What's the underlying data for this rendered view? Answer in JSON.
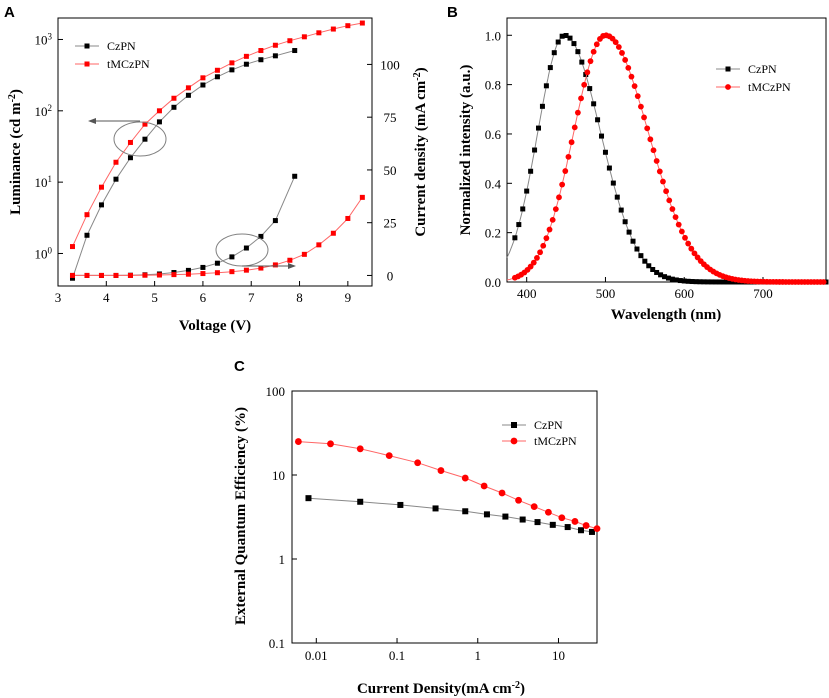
{
  "colors": {
    "black": "#000000",
    "red": "#ff0000",
    "circle": "#808080"
  },
  "panels": {
    "a": "A",
    "b": "B",
    "c": "C"
  },
  "chart_data": [
    {
      "panel": "A",
      "type": "line",
      "xlabel": "Voltage (V)",
      "ylabel_left": "Luminance (cd m",
      "ylabel_left_sup": "-2",
      "ylabel_left_close": ")",
      "ylabel_right": "Current density (mA cm",
      "ylabel_right_sup": "-2",
      "ylabel_right_close": ")",
      "xlim": [
        3,
        9.5
      ],
      "xticks": [
        "3",
        "4",
        "5",
        "6",
        "7",
        "8",
        "9"
      ],
      "ylim_left_log": [
        0.35,
        2000
      ],
      "yticks_left": [
        {
          "base": "10",
          "exp": "0",
          "value": 1
        },
        {
          "base": "10",
          "exp": "1",
          "value": 10
        },
        {
          "base": "10",
          "exp": "2",
          "value": 100
        },
        {
          "base": "10",
          "exp": "3",
          "value": 1000
        }
      ],
      "ylim_right": [
        -5,
        122
      ],
      "yticks_right": [
        "0",
        "25",
        "50",
        "75",
        "100"
      ],
      "legend": [
        "CzPN",
        "tMCzPN"
      ],
      "series": [
        {
          "name": "CzPN",
          "axis": "left",
          "color": "#000000",
          "marker": "square",
          "x": [
            3.3,
            3.6,
            3.9,
            4.2,
            4.5,
            4.8,
            5.1,
            5.4,
            5.7,
            6.0,
            6.3,
            6.6,
            6.9,
            7.2,
            7.5,
            7.9
          ],
          "y": [
            0.45,
            1.8,
            4.8,
            11,
            22,
            40,
            70,
            112,
            165,
            230,
            300,
            375,
            450,
            520,
            590,
            700
          ]
        },
        {
          "name": "tMCzPN",
          "axis": "left",
          "color": "#ff0000",
          "marker": "square",
          "x": [
            3.3,
            3.6,
            3.9,
            4.2,
            4.5,
            4.8,
            5.1,
            5.4,
            5.7,
            6.0,
            6.3,
            6.6,
            6.9,
            7.2,
            7.5,
            7.8,
            8.1,
            8.4,
            8.7,
            9.0,
            9.3
          ],
          "y": [
            1.25,
            3.5,
            8.5,
            19,
            36,
            65,
            100,
            150,
            210,
            290,
            370,
            470,
            580,
            700,
            830,
            960,
            1090,
            1240,
            1400,
            1560,
            1700
          ]
        },
        {
          "name": "CzPN",
          "axis": "right",
          "color": "#000000",
          "marker": "square",
          "x": [
            3.3,
            3.6,
            3.9,
            4.2,
            4.5,
            4.8,
            5.1,
            5.4,
            5.7,
            6.0,
            6.3,
            6.6,
            6.9,
            7.2,
            7.5,
            7.9
          ],
          "y": [
            0,
            0,
            0,
            0,
            0.1,
            0.3,
            0.7,
            1.4,
            2.4,
            3.8,
            5.8,
            8.8,
            13,
            18.5,
            26,
            47
          ]
        },
        {
          "name": "tMCzPN",
          "axis": "right",
          "color": "#ff0000",
          "marker": "square",
          "x": [
            3.3,
            3.6,
            3.9,
            4.2,
            4.5,
            4.8,
            5.1,
            5.4,
            5.7,
            6.0,
            6.3,
            6.6,
            6.9,
            7.2,
            7.5,
            7.8,
            8.1,
            8.4,
            8.7,
            9.0,
            9.3
          ],
          "y": [
            0,
            0,
            0,
            0,
            0,
            0.1,
            0.2,
            0.4,
            0.6,
            0.9,
            1.3,
            1.8,
            2.5,
            3.5,
            5,
            7.2,
            10,
            14.5,
            20,
            27,
            37
          ]
        }
      ]
    },
    {
      "panel": "B",
      "type": "line",
      "xlabel": "Wavelength (nm)",
      "ylabel": "Normalized  intensity (a.u.)",
      "xlim": [
        375,
        780
      ],
      "xticks": [
        "400",
        "500",
        "600",
        "700"
      ],
      "ylim": [
        0,
        1.07
      ],
      "yticks": [
        "0.0",
        "0.2",
        "0.4",
        "0.6",
        "0.8",
        "1.0"
      ],
      "legend": [
        "CzPN",
        "tMCzPN"
      ],
      "series": [
        {
          "name": "CzPN",
          "color": "#000000",
          "marker": "square",
          "peak": 448,
          "fwhm": 80
        },
        {
          "name": "tMCzPN",
          "color": "#ff0000",
          "marker": "circle",
          "peak": 500,
          "fwhm": 95
        }
      ]
    },
    {
      "panel": "C",
      "type": "line",
      "xlabel": "Current Density(mA cm",
      "xlabel_sup": "-2",
      "xlabel_close": ")",
      "ylabel": "External Quantum Efficiency (%)",
      "xlim_log": [
        0.005,
        30
      ],
      "xticks": [
        "0.01",
        "0.1",
        "1",
        "10"
      ],
      "ylim_log": [
        0.1,
        100
      ],
      "yticks": [
        "0.1",
        "1",
        "10",
        "100"
      ],
      "legend": [
        "CzPN",
        "tMCzPN"
      ],
      "series": [
        {
          "name": "CzPN",
          "color": "#000000",
          "marker": "square",
          "x": [
            0.008,
            0.035,
            0.11,
            0.3,
            0.7,
            1.3,
            2.2,
            3.6,
            5.5,
            8.5,
            13,
            19,
            26
          ],
          "y": [
            5.3,
            4.8,
            4.4,
            4.0,
            3.7,
            3.4,
            3.2,
            2.95,
            2.75,
            2.55,
            2.4,
            2.2,
            2.1
          ]
        },
        {
          "name": "tMCzPN",
          "color": "#ff0000",
          "marker": "circle",
          "x": [
            0.006,
            0.015,
            0.035,
            0.08,
            0.18,
            0.35,
            0.7,
            1.2,
            2.0,
            3.2,
            5,
            7.5,
            11,
            16,
            22,
            30
          ],
          "y": [
            25,
            23.5,
            20.5,
            17,
            14,
            11.3,
            9.2,
            7.4,
            6.1,
            5.0,
            4.2,
            3.6,
            3.1,
            2.8,
            2.5,
            2.3
          ]
        }
      ]
    }
  ]
}
